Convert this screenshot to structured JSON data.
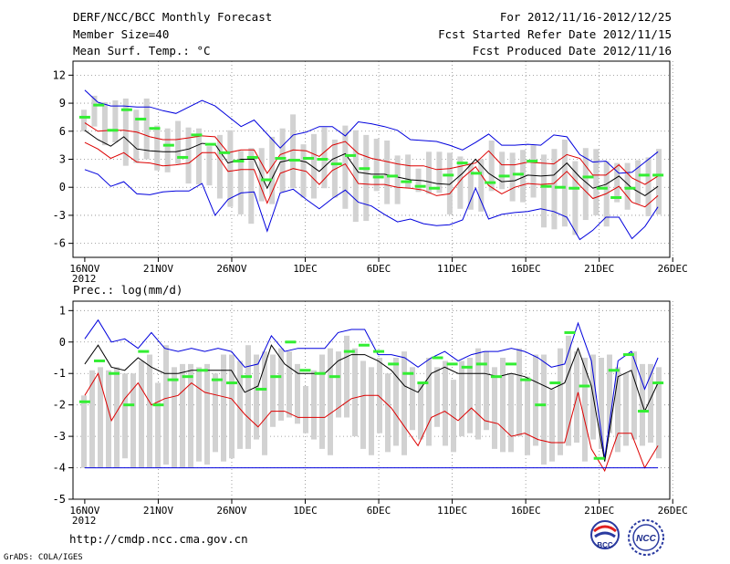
{
  "header": {
    "title": "DERF/NCC/BCC Monthly Forecast",
    "member_size": "Member Size=40",
    "variable": "Mean Surf. Temp.: °C",
    "period": "For 2012/11/16-2012/12/25",
    "fcst_started": "Fcst Started Refer Date 2012/11/15",
    "fcst_produced": "Fcst Produced Date 2012/11/16"
  },
  "footer": {
    "url": "http://cmdp.ncc.cma.gov.cn",
    "grads": "GrADS: COLA/IGES",
    "logo_bcc": "BCC",
    "logo_ncc": "NCC"
  },
  "colors": {
    "max_line": "#0000dd",
    "upper_line": "#dd0000",
    "mean_line": "#000000",
    "box": "#d2d2d2",
    "obs_mark": "#33ee33"
  },
  "chart_data": [
    {
      "type": "line",
      "panel": "temperature",
      "title": "Mean Surf. Temp.: °C",
      "ylim": [
        -7.5,
        13.5
      ],
      "yticks": [
        -6,
        -3,
        0,
        3,
        6,
        9,
        12
      ],
      "x_tick_labels": [
        "16NOV",
        "21NOV",
        "26NOV",
        "1DEC",
        "6DEC",
        "11DEC",
        "16DEC",
        "21DEC",
        "26DEC"
      ],
      "x_year_label": "2012",
      "n_days": 40,
      "series": [
        {
          "name": "max",
          "values": [
            10.4,
            9.1,
            8.7,
            8.7,
            8.6,
            8.6,
            8.2,
            7.9,
            8.6,
            9.3,
            8.7,
            7.6,
            6.5,
            7.2,
            5.7,
            4.2,
            5.6,
            5.9,
            6.5,
            6.5,
            5.5,
            7.0,
            6.8,
            6.5,
            6.1,
            5.1,
            5.0,
            4.9,
            4.5,
            4.0,
            4.8,
            5.7,
            4.5,
            4.5,
            4.6,
            4.5,
            5.6,
            5.4,
            3.5,
            2.7,
            2.8,
            1.5,
            1.6,
            2.7,
            3.8
          ]
        },
        {
          "name": "upper",
          "values": [
            6.9,
            6.0,
            6.1,
            6.1,
            5.9,
            5.4,
            5.1,
            5.1,
            5.3,
            5.5,
            5.4,
            3.7,
            4.0,
            4.0,
            1.5,
            3.5,
            4.0,
            3.9,
            3.3,
            4.5,
            4.9,
            3.6,
            3.1,
            2.8,
            2.5,
            2.3,
            2.3,
            1.9,
            2.0,
            2.3,
            2.6,
            3.9,
            2.4,
            2.4,
            2.7,
            2.6,
            2.5,
            3.5,
            3.1,
            1.3,
            1.3,
            2.4,
            1.0,
            0.3,
            1.2
          ]
        },
        {
          "name": "mean",
          "values": [
            6.1,
            5.1,
            4.4,
            5.4,
            4.1,
            3.9,
            3.8,
            3.8,
            4.1,
            4.7,
            4.6,
            2.6,
            3.0,
            3.0,
            -0.1,
            2.7,
            3.0,
            2.7,
            1.7,
            3.0,
            3.6,
            1.6,
            1.4,
            1.4,
            1.1,
            0.8,
            0.7,
            0.4,
            0.3,
            1.5,
            3.0,
            1.5,
            0.6,
            0.7,
            1.3,
            1.2,
            1.3,
            2.6,
            1.1,
            -0.1,
            0.3,
            1.2,
            -0.1,
            -0.9,
            0.1
          ]
        },
        {
          "name": "lower",
          "values": [
            4.8,
            4.1,
            3.1,
            3.7,
            2.7,
            2.6,
            2.3,
            2.4,
            2.6,
            3.7,
            3.7,
            1.7,
            1.9,
            1.9,
            -1.7,
            1.5,
            2.0,
            1.7,
            0.3,
            1.8,
            2.5,
            0.4,
            0.3,
            0.3,
            0.0,
            -0.1,
            -0.3,
            -0.9,
            -0.7,
            1.0,
            2.2,
            0.2,
            -0.7,
            0.0,
            0.4,
            0.3,
            0.4,
            1.7,
            0.2,
            -1.2,
            -0.7,
            0.1,
            -1.6,
            -2.1,
            -0.9
          ]
        },
        {
          "name": "min",
          "values": [
            1.9,
            1.4,
            0.1,
            0.6,
            -0.7,
            -0.8,
            -0.5,
            -0.4,
            -0.4,
            0.4,
            -3.0,
            -1.3,
            -0.6,
            -0.5,
            -4.7,
            -0.6,
            -0.2,
            -1.3,
            -2.3,
            -1.2,
            -0.3,
            -1.6,
            -2.0,
            -2.9,
            -3.7,
            -3.4,
            -3.9,
            -4.1,
            -4.0,
            -3.5,
            -0.1,
            -3.4,
            -2.9,
            -2.7,
            -2.6,
            -2.3,
            -2.6,
            -3.2,
            -5.6,
            -4.6,
            -3.2,
            -3.2,
            -5.5,
            -4.2,
            -2.1
          ]
        }
      ],
      "boxes": {
        "name": "member range",
        "values": [
          [
            6.0,
            8.3
          ],
          [
            6.5,
            9.8
          ],
          [
            4.5,
            9.1
          ],
          [
            4.8,
            9.3
          ],
          [
            2.3,
            9.5
          ],
          [
            2.6,
            8.3
          ],
          [
            3.0,
            9.5
          ],
          [
            1.8,
            6.6
          ],
          [
            1.6,
            6.3
          ],
          [
            2.5,
            7.1
          ],
          [
            0.4,
            6.4
          ],
          [
            0.3,
            6.3
          ],
          [
            0.2,
            4.4
          ],
          [
            -1.2,
            5.6
          ],
          [
            -2.1,
            6.1
          ],
          [
            -2.9,
            3.9
          ],
          [
            -3.9,
            4.2
          ],
          [
            -1.5,
            4.2
          ],
          [
            -1.8,
            5.4
          ],
          [
            -0.5,
            6.3
          ],
          [
            -0.1,
            7.8
          ],
          [
            -1.1,
            4.6
          ],
          [
            -1.2,
            5.7
          ],
          [
            -0.1,
            6.4
          ],
          [
            -1.1,
            5.1
          ],
          [
            -2.3,
            6.6
          ],
          [
            -3.7,
            6.1
          ],
          [
            -3.6,
            5.6
          ],
          [
            -0.4,
            5.2
          ],
          [
            -1.8,
            5.0
          ],
          [
            -1.8,
            3.4
          ],
          [
            -0.1,
            3.5
          ],
          [
            -0.5,
            2.0
          ],
          [
            -0.7,
            3.8
          ],
          [
            -0.6,
            3.8
          ],
          [
            -2.9,
            3.7
          ],
          [
            -2.3,
            3.3
          ],
          [
            -2.4,
            2.6
          ],
          [
            -2.6,
            3.0
          ],
          [
            -0.4,
            5.0
          ],
          [
            -0.2,
            3.8
          ],
          [
            -1.5,
            3.7
          ],
          [
            -1.6,
            4.0
          ],
          [
            -1.1,
            4.5
          ],
          [
            -4.3,
            3.5
          ],
          [
            -4.5,
            4.1
          ],
          [
            -4.2,
            5.1
          ],
          [
            -5.1,
            2.8
          ],
          [
            -3.5,
            4.2
          ],
          [
            -3.0,
            4.1
          ],
          [
            -4.2,
            2.8
          ],
          [
            -1.6,
            2.6
          ],
          [
            -2.4,
            2.6
          ],
          [
            -1.8,
            2.9
          ],
          [
            -3.1,
            3.2
          ],
          [
            -2.9,
            4.1
          ]
        ]
      },
      "observed": {
        "name": "observed",
        "values": [
          7.5,
          8.8,
          6.1,
          8.3,
          7.3,
          6.3,
          4.5,
          3.2,
          5.6,
          4.6,
          3.7,
          2.8,
          3.2,
          0.8,
          3.1,
          2.9,
          3.1,
          3.0,
          2.5,
          3.4,
          2.0,
          1.1,
          1.2,
          0.6,
          0.1,
          -0.1,
          1.3,
          2.6,
          1.5,
          0.5,
          1.2,
          1.4,
          2.8,
          0.1,
          0.0,
          -0.1,
          1.1,
          -0.1,
          -1.1,
          -0.1,
          1.3,
          1.3
        ]
      }
    },
    {
      "type": "line",
      "panel": "precipitation",
      "title": "Prec.: log(mm/d)",
      "ylim": [
        -5,
        1.3
      ],
      "yticks": [
        -5,
        -4,
        -3,
        -2,
        -1,
        0,
        1
      ],
      "x_tick_labels": [
        "16NOV",
        "21NOV",
        "26NOV",
        "1DEC",
        "6DEC",
        "11DEC",
        "16DEC",
        "21DEC",
        "26DEC"
      ],
      "x_year_label": "2012",
      "n_days": 40,
      "series": [
        {
          "name": "max",
          "values": [
            0.1,
            0.7,
            0.0,
            0.1,
            -0.2,
            0.3,
            -0.2,
            -0.3,
            -0.2,
            -0.3,
            -0.2,
            -0.3,
            -0.8,
            -0.7,
            0.2,
            -0.3,
            -0.2,
            -0.2,
            -0.2,
            0.3,
            0.4,
            0.4,
            -0.4,
            -0.4,
            -0.5,
            -0.8,
            -0.5,
            -0.3,
            -0.6,
            -0.4,
            -0.3,
            -0.3,
            -0.2,
            -0.3,
            -0.5,
            -0.8,
            -0.7,
            0.6,
            -0.6,
            -3.7,
            -0.6,
            -0.3,
            -1.5,
            -0.5
          ]
        },
        {
          "name": "mean",
          "values": [
            -0.7,
            -0.1,
            -0.8,
            -0.9,
            -0.5,
            -0.8,
            -1.0,
            -1.0,
            -0.9,
            -0.9,
            -0.9,
            -0.9,
            -1.6,
            -1.4,
            -0.1,
            -0.7,
            -1.0,
            -1.0,
            -1.0,
            -0.6,
            -0.4,
            -0.4,
            -0.6,
            -0.9,
            -1.4,
            -1.6,
            -1.0,
            -0.8,
            -1.0,
            -1.0,
            -1.0,
            -1.1,
            -1.0,
            -1.1,
            -1.3,
            -1.5,
            -1.3,
            -0.2,
            -1.4,
            -3.8,
            -1.1,
            -0.9,
            -2.2,
            -1.3
          ]
        },
        {
          "name": "lower",
          "values": [
            -1.7,
            -1.0,
            -2.5,
            -1.8,
            -1.3,
            -2.0,
            -1.8,
            -1.7,
            -1.3,
            -1.6,
            -1.7,
            -1.8,
            -2.3,
            -2.7,
            -2.2,
            -2.2,
            -2.4,
            -2.4,
            -2.4,
            -2.1,
            -1.8,
            -1.7,
            -1.7,
            -2.1,
            -2.7,
            -3.3,
            -2.4,
            -2.2,
            -2.5,
            -2.1,
            -2.5,
            -2.6,
            -3.0,
            -2.9,
            -3.1,
            -3.2,
            -3.2,
            -1.6,
            -3.4,
            -4.1,
            -2.9,
            -2.9,
            -4.0,
            -3.3
          ]
        },
        {
          "name": "min",
          "values": [
            -4.0,
            -4.0,
            -4.0,
            -4.0,
            -4.0,
            -4.0,
            -4.0,
            -4.0,
            -4.0,
            -4.0,
            -4.0,
            -4.0,
            -4.0,
            -4.0,
            -4.0,
            -4.0,
            -4.0,
            -4.0,
            -4.0,
            -4.0,
            -4.0,
            -4.0,
            -4.0,
            -4.0,
            -4.0,
            -4.0,
            -4.0,
            -4.0,
            -4.0,
            -4.0,
            -4.0,
            -4.0,
            -4.0,
            -4.0,
            -4.0,
            -4.0,
            -4.0,
            -4.0,
            -4.0,
            -4.0,
            -4.0,
            -4.0,
            -4.0,
            -4.0
          ]
        }
      ],
      "boxes": {
        "name": "member range",
        "values": [
          [
            -4.0,
            -1.7
          ],
          [
            -4.0,
            -0.9
          ],
          [
            -4.0,
            -0.8
          ],
          [
            -4.0,
            -0.9
          ],
          [
            -4.0,
            -0.8
          ],
          [
            -3.7,
            -1.0
          ],
          [
            -4.0,
            -1.0
          ],
          [
            -4.0,
            -0.6
          ],
          [
            -4.0,
            -0.4
          ],
          [
            -4.0,
            -1.3
          ],
          [
            -3.9,
            -0.1
          ],
          [
            -4.0,
            -0.8
          ],
          [
            -4.0,
            -0.7
          ],
          [
            -4.0,
            -0.7
          ],
          [
            -3.8,
            -0.8
          ],
          [
            -3.9,
            -0.7
          ],
          [
            -3.5,
            -1.0
          ],
          [
            -3.8,
            -0.4
          ],
          [
            -3.7,
            -0.4
          ],
          [
            -3.4,
            -0.6
          ],
          [
            -3.4,
            -0.1
          ],
          [
            -3.1,
            -0.4
          ],
          [
            -3.6,
            -0.3
          ],
          [
            -2.7,
            -0.4
          ],
          [
            -2.5,
            -0.2
          ],
          [
            -2.4,
            -0.3
          ],
          [
            -2.6,
            -0.7
          ],
          [
            -2.9,
            -1.4
          ],
          [
            -3.1,
            -0.9
          ],
          [
            -3.4,
            -0.4
          ],
          [
            -3.6,
            -0.2
          ],
          [
            -2.4,
            -0.3
          ],
          [
            -2.4,
            0.2
          ],
          [
            -3.0,
            -0.2
          ],
          [
            -3.4,
            -0.6
          ],
          [
            -3.6,
            -0.8
          ],
          [
            -2.9,
            -0.5
          ],
          [
            -3.5,
            -1.0
          ],
          [
            -3.3,
            -0.5
          ],
          [
            -3.6,
            -0.3
          ],
          [
            -2.8,
            -0.8
          ],
          [
            -3.1,
            -1.3
          ],
          [
            -3.3,
            -0.5
          ],
          [
            -2.7,
            -0.8
          ],
          [
            -3.3,
            -0.6
          ],
          [
            -3.5,
            -1.2
          ],
          [
            -3.0,
            -0.6
          ],
          [
            -2.9,
            -0.5
          ],
          [
            -3.1,
            -0.2
          ],
          [
            -2.8,
            -0.3
          ],
          [
            -3.4,
            -0.8
          ],
          [
            -3.5,
            -0.5
          ],
          [
            -3.5,
            -1.0
          ],
          [
            -3.0,
            -0.2
          ],
          [
            -3.6,
            -1.1
          ],
          [
            -3.3,
            -0.4
          ],
          [
            -3.9,
            -0.4
          ],
          [
            -3.8,
            -1.5
          ],
          [
            -3.6,
            -0.2
          ],
          [
            -3.3,
            0.2
          ],
          [
            -3.2,
            -0.3
          ],
          [
            -3.8,
            -0.5
          ],
          [
            -3.1,
            -0.4
          ],
          [
            -3.4,
            -0.5
          ],
          [
            -2.9,
            -0.4
          ],
          [
            -3.5,
            -0.8
          ],
          [
            -3.3,
            -1.0
          ],
          [
            -3.1,
            -0.3
          ],
          [
            -3.3,
            -0.7
          ],
          [
            -3.2,
            -0.7
          ],
          [
            -3.7,
            -0.8
          ]
        ]
      },
      "observed": {
        "name": "observed",
        "values": [
          -1.9,
          -0.6,
          -1.0,
          -2.0,
          -0.3,
          -2.0,
          -1.2,
          -1.1,
          -0.9,
          -1.2,
          -1.3,
          -1.1,
          -1.5,
          -1.1,
          0.0,
          -0.9,
          -1.0,
          -1.1,
          -0.3,
          -0.1,
          -0.3,
          -0.7,
          -1.0,
          -1.3,
          -0.5,
          -0.7,
          -0.8,
          -0.7,
          -1.1,
          -0.7,
          -1.2,
          -2.0,
          -1.3,
          0.3,
          -1.4,
          -3.7,
          -0.9,
          -0.4,
          -2.2,
          -1.3
        ]
      }
    }
  ]
}
